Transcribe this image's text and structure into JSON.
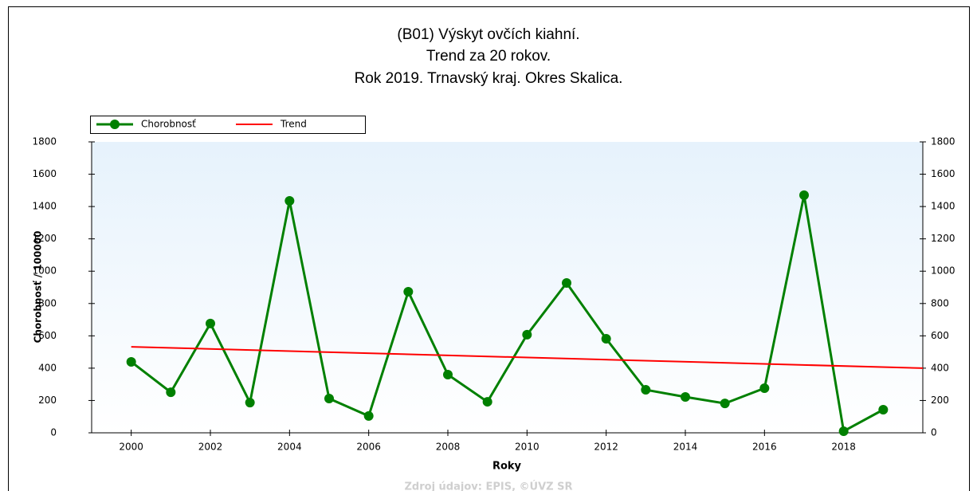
{
  "chart_data": {
    "type": "line",
    "title": [
      "(B01) Výskyt ovčích kiahní.",
      "Trend za 20 rokov.",
      "Rok 2019. Trnavský kraj. Okres Skalica."
    ],
    "xlabel": "Roky",
    "ylabel": "Chorobnosť / 100000",
    "source": "Zdroj údajov: EPIS, ©ÚVZ SR",
    "series": [
      {
        "name": "Chorobnosť",
        "color": "#008000",
        "markers": true,
        "x": [
          2000,
          2001,
          2002,
          2003,
          2004,
          2005,
          2006,
          2007,
          2008,
          2009,
          2010,
          2011,
          2012,
          2013,
          2014,
          2015,
          2016,
          2017,
          2018,
          2019
        ],
        "values": [
          439,
          251,
          676,
          187,
          1435,
          212,
          104,
          873,
          360,
          192,
          607,
          927,
          582,
          266,
          222,
          182,
          276,
          1470,
          10,
          143
        ]
      },
      {
        "name": "Trend",
        "color": "#ff0000",
        "markers": false,
        "x": [
          2000,
          2020
        ],
        "values": [
          532,
          400
        ]
      }
    ],
    "xlim": [
      1999,
      2020
    ],
    "xticks": [
      2000,
      2002,
      2004,
      2006,
      2008,
      2010,
      2012,
      2014,
      2016,
      2018
    ],
    "ylim": [
      0,
      1800
    ],
    "yticks": [
      0,
      200,
      400,
      600,
      800,
      1000,
      1200,
      1400,
      1600,
      1800
    ],
    "y2lim": [
      0,
      1800
    ],
    "y2ticks": [
      0,
      200,
      400,
      600,
      800,
      1000,
      1200,
      1400,
      1600,
      1800
    ],
    "legend": "top-left"
  }
}
